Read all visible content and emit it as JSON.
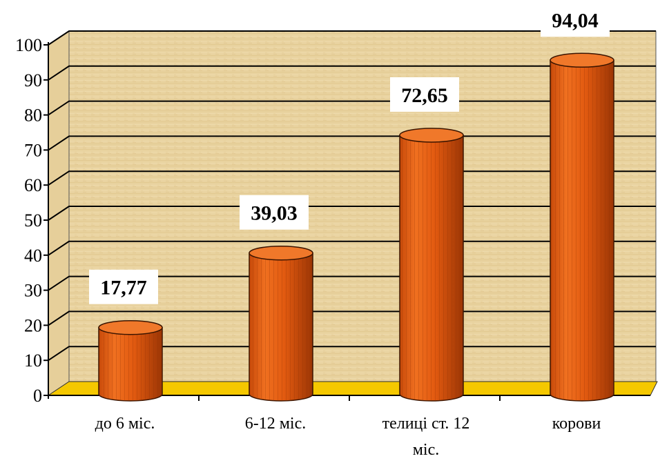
{
  "chart_data": {
    "type": "bar",
    "title": "",
    "xlabel": "",
    "ylabel": "",
    "ylim": [
      0,
      100
    ],
    "yticks": [
      0,
      10,
      20,
      30,
      40,
      50,
      60,
      70,
      80,
      90,
      100
    ],
    "grid": true,
    "categories": [
      [
        "до 6 міс."
      ],
      [
        "6-12 міс."
      ],
      [
        "телиці ст. 12",
        "міс."
      ],
      [
        "корови"
      ]
    ],
    "values": [
      17.77,
      39.03,
      72.65,
      94.04
    ],
    "data_labels": [
      "17,77",
      "39,03",
      "72,65",
      "94,04"
    ]
  },
  "colors": {
    "bar_front": "#e85a10",
    "bar_side": "#a83a05",
    "bar_top": "#f0782a",
    "floor": "#f5c800",
    "wall": "#e6cf9a",
    "gridline": "#000000"
  }
}
